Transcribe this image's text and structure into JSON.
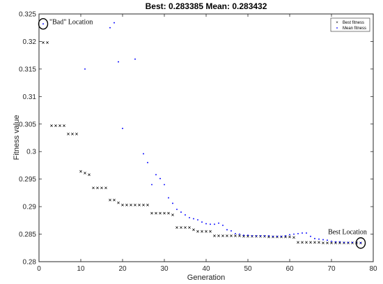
{
  "chart_data": {
    "type": "scatter",
    "title": "Best: 0.283385 Mean: 0.283432",
    "xlabel": "Generation",
    "ylabel": "Fitness value",
    "xlim": [
      0,
      80
    ],
    "ylim": [
      0.28,
      0.325
    ],
    "xticks": [
      "0",
      "10",
      "20",
      "30",
      "40",
      "50",
      "60",
      "70",
      "80"
    ],
    "yticks": [
      "0.28",
      "0.285",
      "0.29",
      "0.295",
      "0.3",
      "0.305",
      "0.31",
      "0.315",
      "0.32",
      "0.325"
    ],
    "grid": false,
    "legend_position": "top-right",
    "series": [
      {
        "name": "Best fitness",
        "marker": "x",
        "color": "#000000",
        "points": [
          [
            1,
            0.3198
          ],
          [
            2,
            0.3198
          ],
          [
            3,
            0.3047
          ],
          [
            4,
            0.3047
          ],
          [
            5,
            0.3047
          ],
          [
            6,
            0.3047
          ],
          [
            7,
            0.3032
          ],
          [
            8,
            0.3032
          ],
          [
            9,
            0.3032
          ],
          [
            10,
            0.2964
          ],
          [
            11,
            0.2961
          ],
          [
            12,
            0.2958
          ],
          [
            13,
            0.2934
          ],
          [
            14,
            0.2934
          ],
          [
            15,
            0.2934
          ],
          [
            16,
            0.2934
          ],
          [
            17,
            0.2912
          ],
          [
            18,
            0.2912
          ],
          [
            19,
            0.2907
          ],
          [
            20,
            0.2903
          ],
          [
            21,
            0.2903
          ],
          [
            22,
            0.2903
          ],
          [
            23,
            0.2903
          ],
          [
            24,
            0.2903
          ],
          [
            25,
            0.2903
          ],
          [
            26,
            0.2903
          ],
          [
            27,
            0.2888
          ],
          [
            28,
            0.2888
          ],
          [
            29,
            0.2888
          ],
          [
            30,
            0.2888
          ],
          [
            31,
            0.2888
          ],
          [
            32,
            0.2885
          ],
          [
            33,
            0.2862
          ],
          [
            34,
            0.2862
          ],
          [
            35,
            0.2862
          ],
          [
            36,
            0.2862
          ],
          [
            37,
            0.2858
          ],
          [
            38,
            0.2855
          ],
          [
            39,
            0.2855
          ],
          [
            40,
            0.2855
          ],
          [
            41,
            0.2855
          ],
          [
            42,
            0.2847
          ],
          [
            43,
            0.2847
          ],
          [
            44,
            0.2847
          ],
          [
            45,
            0.2847
          ],
          [
            46,
            0.2847
          ],
          [
            47,
            0.2847
          ],
          [
            48,
            0.2847
          ],
          [
            49,
            0.2846
          ],
          [
            50,
            0.2846
          ],
          [
            51,
            0.2846
          ],
          [
            52,
            0.2846
          ],
          [
            53,
            0.2846
          ],
          [
            54,
            0.2846
          ],
          [
            55,
            0.2845
          ],
          [
            56,
            0.2845
          ],
          [
            57,
            0.2845
          ],
          [
            58,
            0.2845
          ],
          [
            59,
            0.2845
          ],
          [
            60,
            0.2845
          ],
          [
            61,
            0.2844
          ],
          [
            62,
            0.2835
          ],
          [
            63,
            0.2835
          ],
          [
            64,
            0.2835
          ],
          [
            65,
            0.2835
          ],
          [
            66,
            0.2835
          ],
          [
            67,
            0.2835
          ],
          [
            68,
            0.2834
          ],
          [
            69,
            0.2834
          ],
          [
            70,
            0.2834
          ],
          [
            71,
            0.2834
          ],
          [
            72,
            0.2834
          ],
          [
            73,
            0.2834
          ],
          [
            74,
            0.2834
          ],
          [
            75,
            0.2834
          ],
          [
            76,
            0.2834
          ],
          [
            77,
            0.28339
          ]
        ]
      },
      {
        "name": "Mean fitness",
        "marker": "dot",
        "color": "#0000ff",
        "points": [
          [
            1,
            0.3232
          ],
          [
            11,
            0.315
          ],
          [
            17,
            0.3225
          ],
          [
            18,
            0.3234
          ],
          [
            19,
            0.3163
          ],
          [
            20,
            0.3042
          ],
          [
            23,
            0.3168
          ],
          [
            25,
            0.2996
          ],
          [
            26,
            0.298
          ],
          [
            27,
            0.294
          ],
          [
            28,
            0.2958
          ],
          [
            29,
            0.2951
          ],
          [
            30,
            0.294
          ],
          [
            31,
            0.2916
          ],
          [
            32,
            0.2906
          ],
          [
            33,
            0.2895
          ],
          [
            34,
            0.289
          ],
          [
            35,
            0.2885
          ],
          [
            36,
            0.288
          ],
          [
            37,
            0.2878
          ],
          [
            38,
            0.2876
          ],
          [
            39,
            0.2872
          ],
          [
            40,
            0.2869
          ],
          [
            41,
            0.2868
          ],
          [
            42,
            0.2868
          ],
          [
            43,
            0.287
          ],
          [
            44,
            0.2866
          ],
          [
            45,
            0.2858
          ],
          [
            46,
            0.2856
          ],
          [
            47,
            0.2851
          ],
          [
            48,
            0.285
          ],
          [
            49,
            0.2848
          ],
          [
            50,
            0.2848
          ],
          [
            51,
            0.2847
          ],
          [
            52,
            0.2847
          ],
          [
            53,
            0.2847
          ],
          [
            54,
            0.2847
          ],
          [
            55,
            0.2847
          ],
          [
            56,
            0.2846
          ],
          [
            57,
            0.2846
          ],
          [
            58,
            0.2846
          ],
          [
            59,
            0.2847
          ],
          [
            60,
            0.2849
          ],
          [
            61,
            0.285
          ],
          [
            62,
            0.2851
          ],
          [
            63,
            0.2852
          ],
          [
            64,
            0.2852
          ],
          [
            65,
            0.2846
          ],
          [
            66,
            0.2842
          ],
          [
            67,
            0.2841
          ],
          [
            68,
            0.284
          ],
          [
            69,
            0.2839
          ],
          [
            70,
            0.2837
          ],
          [
            71,
            0.2836
          ],
          [
            72,
            0.2836
          ],
          [
            73,
            0.2835
          ],
          [
            74,
            0.2835
          ],
          [
            75,
            0.2835
          ],
          [
            76,
            0.2835
          ],
          [
            77,
            0.28343
          ]
        ]
      }
    ],
    "annotations": [
      {
        "text": "\"Bad\" Location",
        "x": 1,
        "y": 0.3232,
        "circled": true
      },
      {
        "text": "Best Location",
        "x": 77,
        "y": 0.28339,
        "circled": true
      }
    ]
  }
}
